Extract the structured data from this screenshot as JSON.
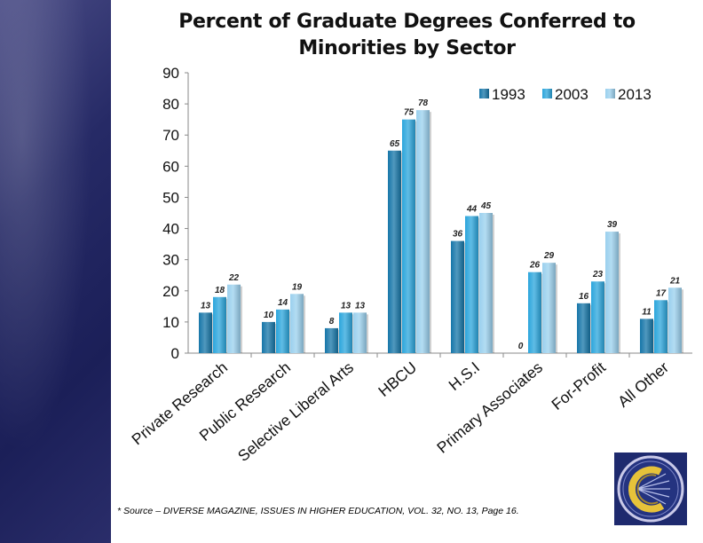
{
  "chart_data": {
    "type": "bar",
    "title": "Percent of Graduate Degrees Conferred to Minorities by Sector",
    "title_lines": [
      "Percent of Graduate Degrees Conferred to",
      "Minorities by Sector"
    ],
    "categories": [
      "Private Research",
      "Public Research",
      "Selective Liberal Arts",
      "HBCU",
      "H.S.I",
      "Primary Associates",
      "For-Profit",
      "All Other"
    ],
    "series": [
      {
        "name": "1993",
        "values": [
          13,
          10,
          8,
          65,
          36,
          0,
          16,
          11
        ],
        "color": "#1575a8"
      },
      {
        "name": "2003",
        "values": [
          18,
          14,
          13,
          75,
          44,
          26,
          23,
          17
        ],
        "color": "#2ba5dc"
      },
      {
        "name": "2013",
        "values": [
          22,
          19,
          13,
          78,
          45,
          29,
          39,
          21
        ],
        "color": "#9ad0ee"
      }
    ],
    "ylim": [
      0,
      90
    ],
    "yticks": [
      0,
      10,
      20,
      30,
      40,
      50,
      60,
      70,
      80,
      90
    ],
    "xlabel": "",
    "ylabel": "",
    "grid": false,
    "legend": "top-right"
  },
  "footer": {
    "source": "* Source – DIVERSE MAGAZINE, ISSUES IN HIGHER EDUCATION, VOL. 32, NO. 13, Page 16."
  },
  "colors": {
    "side_band": "#262a66",
    "logo_bg": "#1e2a6e",
    "logo_gold": "#e6c23a"
  },
  "logo": {
    "icon": "college-seal-icon"
  }
}
